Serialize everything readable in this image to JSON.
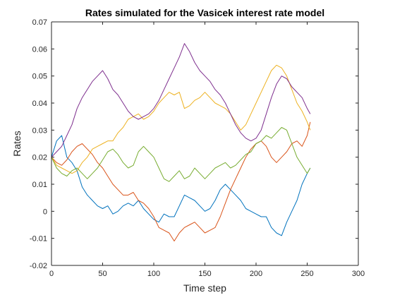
{
  "chart_data": {
    "type": "line",
    "title": "Rates simulated for the Vasicek interest rate model",
    "xlabel": "Time step",
    "ylabel": "Rates",
    "xlim": [
      0,
      300
    ],
    "ylim": [
      -0.02,
      0.07
    ],
    "xticks": [
      0,
      50,
      100,
      150,
      200,
      250,
      300
    ],
    "xtick_labels": [
      "0",
      "50",
      "100",
      "150",
      "200",
      "250",
      "300"
    ],
    "yticks": [
      -0.02,
      -0.01,
      0,
      0.01,
      0.02,
      0.03,
      0.04,
      0.05,
      0.06,
      0.07
    ],
    "ytick_labels": [
      "-0.02",
      "-0.01",
      "0",
      "0.01",
      "0.02",
      "0.03",
      "0.04",
      "0.05",
      "0.06",
      "0.07"
    ],
    "grid": false,
    "legend": "none",
    "series": [
      {
        "color": "#0072BD",
        "x": [
          0,
          5,
          10,
          15,
          20,
          25,
          30,
          35,
          40,
          45,
          50,
          55,
          60,
          65,
          70,
          75,
          80,
          85,
          90,
          95,
          100,
          105,
          110,
          115,
          120,
          125,
          130,
          135,
          140,
          145,
          150,
          155,
          160,
          165,
          170,
          175,
          180,
          185,
          190,
          195,
          200,
          205,
          210,
          215,
          220,
          225,
          230,
          235,
          240,
          245,
          250,
          253
        ],
        "y": [
          0.02,
          0.026,
          0.028,
          0.02,
          0.018,
          0.015,
          0.009,
          0.006,
          0.004,
          0.002,
          0.001,
          0.002,
          -0.001,
          0.0,
          0.002,
          0.003,
          0.002,
          0.004,
          0.001,
          -0.001,
          -0.003,
          -0.004,
          -0.001,
          -0.002,
          -0.002,
          0.002,
          0.006,
          0.005,
          0.004,
          0.002,
          0.0,
          0.001,
          0.004,
          0.008,
          0.01,
          0.008,
          0.006,
          0.004,
          0.001,
          0.0,
          -0.001,
          -0.002,
          -0.002,
          -0.006,
          -0.008,
          -0.009,
          -0.004,
          0.0,
          0.004,
          0.01,
          0.014,
          0.016
        ]
      },
      {
        "color": "#D95319",
        "x": [
          0,
          5,
          10,
          15,
          20,
          25,
          30,
          35,
          40,
          45,
          50,
          55,
          60,
          65,
          70,
          75,
          80,
          85,
          90,
          95,
          100,
          105,
          110,
          115,
          120,
          125,
          130,
          135,
          140,
          145,
          150,
          155,
          160,
          165,
          170,
          175,
          180,
          185,
          190,
          195,
          200,
          205,
          210,
          215,
          220,
          225,
          230,
          235,
          240,
          245,
          250,
          253
        ],
        "y": [
          0.02,
          0.018,
          0.017,
          0.019,
          0.022,
          0.024,
          0.025,
          0.023,
          0.021,
          0.018,
          0.016,
          0.013,
          0.01,
          0.008,
          0.006,
          0.006,
          0.007,
          0.004,
          0.003,
          0.001,
          -0.002,
          -0.006,
          -0.007,
          -0.008,
          -0.011,
          -0.008,
          -0.006,
          -0.005,
          -0.004,
          -0.006,
          -0.008,
          -0.007,
          -0.006,
          -0.002,
          0.003,
          0.008,
          0.012,
          0.016,
          0.02,
          0.023,
          0.025,
          0.026,
          0.024,
          0.02,
          0.018,
          0.02,
          0.022,
          0.025,
          0.026,
          0.024,
          0.028,
          0.033
        ]
      },
      {
        "color": "#EDB120",
        "x": [
          0,
          5,
          10,
          15,
          20,
          25,
          30,
          35,
          40,
          45,
          50,
          55,
          60,
          65,
          70,
          75,
          80,
          85,
          90,
          95,
          100,
          105,
          110,
          115,
          120,
          125,
          130,
          135,
          140,
          145,
          150,
          155,
          160,
          165,
          170,
          175,
          180,
          185,
          190,
          195,
          200,
          205,
          210,
          215,
          220,
          225,
          230,
          235,
          240,
          245,
          250,
          253
        ],
        "y": [
          0.02,
          0.017,
          0.016,
          0.015,
          0.014,
          0.015,
          0.018,
          0.02,
          0.023,
          0.024,
          0.025,
          0.026,
          0.026,
          0.029,
          0.031,
          0.034,
          0.035,
          0.036,
          0.034,
          0.035,
          0.037,
          0.04,
          0.042,
          0.044,
          0.043,
          0.044,
          0.038,
          0.039,
          0.041,
          0.042,
          0.044,
          0.042,
          0.04,
          0.039,
          0.038,
          0.036,
          0.033,
          0.03,
          0.032,
          0.036,
          0.04,
          0.044,
          0.048,
          0.052,
          0.054,
          0.053,
          0.05,
          0.045,
          0.04,
          0.037,
          0.033,
          0.03
        ]
      },
      {
        "color": "#7E2F8E",
        "x": [
          0,
          5,
          10,
          15,
          20,
          25,
          30,
          35,
          40,
          45,
          50,
          55,
          60,
          65,
          70,
          75,
          80,
          85,
          90,
          95,
          100,
          105,
          110,
          115,
          120,
          125,
          130,
          135,
          140,
          145,
          150,
          155,
          160,
          165,
          170,
          175,
          180,
          185,
          190,
          195,
          200,
          205,
          210,
          215,
          220,
          225,
          230,
          235,
          240,
          245,
          250,
          253
        ],
        "y": [
          0.02,
          0.022,
          0.024,
          0.028,
          0.032,
          0.038,
          0.042,
          0.045,
          0.048,
          0.05,
          0.052,
          0.049,
          0.045,
          0.043,
          0.04,
          0.037,
          0.035,
          0.034,
          0.035,
          0.036,
          0.038,
          0.041,
          0.045,
          0.049,
          0.053,
          0.057,
          0.062,
          0.059,
          0.055,
          0.052,
          0.05,
          0.048,
          0.045,
          0.043,
          0.04,
          0.036,
          0.032,
          0.029,
          0.027,
          0.026,
          0.027,
          0.03,
          0.036,
          0.042,
          0.047,
          0.05,
          0.049,
          0.046,
          0.044,
          0.042,
          0.038,
          0.036
        ]
      },
      {
        "color": "#77AC30",
        "x": [
          0,
          5,
          10,
          15,
          20,
          25,
          30,
          35,
          40,
          45,
          50,
          55,
          60,
          65,
          70,
          75,
          80,
          85,
          90,
          95,
          100,
          105,
          110,
          115,
          120,
          125,
          130,
          135,
          140,
          145,
          150,
          155,
          160,
          165,
          170,
          175,
          180,
          185,
          190,
          195,
          200,
          205,
          210,
          215,
          220,
          225,
          230,
          235,
          240,
          245,
          250,
          253
        ],
        "y": [
          0.02,
          0.016,
          0.014,
          0.013,
          0.015,
          0.016,
          0.014,
          0.012,
          0.014,
          0.016,
          0.019,
          0.022,
          0.023,
          0.021,
          0.018,
          0.016,
          0.017,
          0.022,
          0.024,
          0.022,
          0.02,
          0.016,
          0.012,
          0.011,
          0.013,
          0.015,
          0.012,
          0.013,
          0.016,
          0.014,
          0.012,
          0.014,
          0.016,
          0.017,
          0.018,
          0.016,
          0.017,
          0.019,
          0.021,
          0.022,
          0.025,
          0.026,
          0.028,
          0.027,
          0.029,
          0.031,
          0.03,
          0.025,
          0.02,
          0.017,
          0.014,
          0.016
        ]
      }
    ]
  }
}
